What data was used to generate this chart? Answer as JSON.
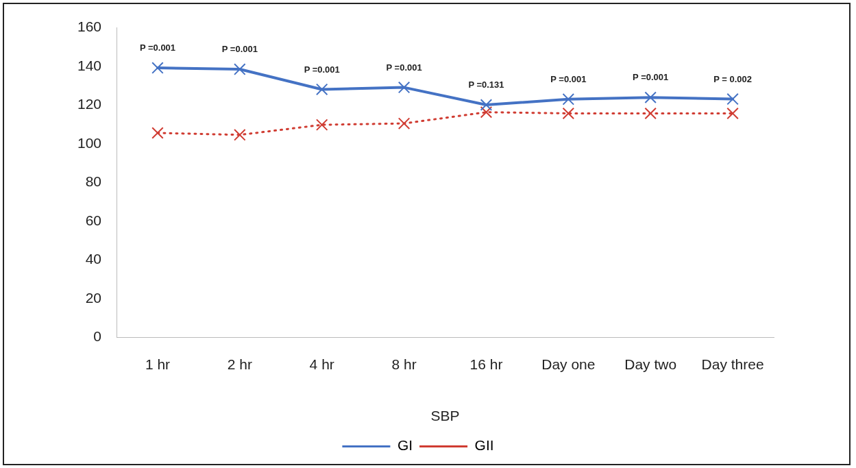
{
  "chart_data": {
    "type": "line",
    "xlabel": "SBP",
    "categories": [
      "1 hr",
      "2 hr",
      "4 hr",
      "8 hr",
      "16 hr",
      "Day one",
      "Day two",
      "Day three"
    ],
    "series": [
      {
        "name": "GI",
        "color": "#4472c4",
        "line_style": "solid",
        "values": [
          139.3,
          138.6,
          128.2,
          129.2,
          120.2,
          123.1,
          124,
          123.2
        ]
      },
      {
        "name": "GII",
        "color": "#d03c32",
        "line_style": "dotted",
        "values": [
          105.7,
          104.7,
          109.9,
          110.6,
          116.4,
          115.8,
          115.8,
          115.8
        ]
      }
    ],
    "marker": "cross",
    "ylim": [
      0,
      160
    ],
    "yticks": [
      0,
      20,
      40,
      60,
      80,
      100,
      120,
      140,
      160
    ],
    "grid": false,
    "legend": "bottom",
    "annotations": [
      {
        "text": "P =0.001",
        "x": "1 hr",
        "y": 139.3
      },
      {
        "text": "P =0.001",
        "x": "2 hr",
        "y": 138.6
      },
      {
        "text": "P =0.001",
        "x": "4 hr",
        "y": 128.2
      },
      {
        "text": "P =0.001",
        "x": "8 hr",
        "y": 129.2
      },
      {
        "text": "P =0.131",
        "x": "16 hr",
        "y": 120.2
      },
      {
        "text": "P =0.001",
        "x": "Day one",
        "y": 123.1
      },
      {
        "text": "P =0.001",
        "x": "Day two",
        "y": 124
      },
      {
        "text": "P = 0.002",
        "x": "Day three",
        "y": 123.2
      }
    ]
  }
}
